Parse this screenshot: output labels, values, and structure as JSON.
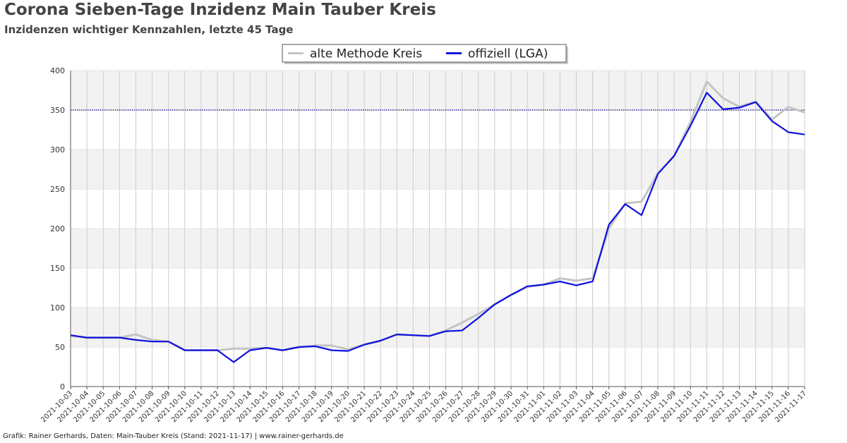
{
  "header": {
    "title": "Corona Sieben-Tage Inzidenz Main Tauber Kreis",
    "subtitle": "Inzidenzen wichtiger Kennzahlen, letzte 45 Tage"
  },
  "footer": {
    "credit": "Grafik: Rainer Gerhards, Daten: Main-Tauber Kreis (Stand: 2021-11-17) | www.rainer-gerhards.de"
  },
  "colors": {
    "official": "#1010e0",
    "old_method": "#c4c4c4",
    "threshold": "#00008b",
    "band": "#f2f2f2",
    "grid": "#cccccc"
  },
  "chart_data": {
    "type": "line",
    "title": "Corona Sieben-Tage Inzidenz Main Tauber Kreis",
    "subtitle": "Inzidenzen wichtiger Kennzahlen, letzte 45 Tage",
    "xlabel": "",
    "ylabel": "",
    "ylim": [
      0,
      400
    ],
    "yticks": [
      0,
      50,
      100,
      150,
      200,
      250,
      300,
      350,
      400
    ],
    "grid": true,
    "legend_position": "top-center",
    "reference_line": {
      "y": 350,
      "style": "dotted"
    },
    "x": [
      "2021-10-03",
      "2021-10-04",
      "2021-10-05",
      "2021-10-06",
      "2021-10-07",
      "2021-10-08",
      "2021-10-09",
      "2021-10-10",
      "2021-10-11",
      "2021-10-12",
      "2021-10-13",
      "2021-10-14",
      "2021-10-15",
      "2021-10-16",
      "2021-10-17",
      "2021-10-18",
      "2021-10-19",
      "2021-10-20",
      "2021-10-21",
      "2021-10-22",
      "2021-10-23",
      "2021-10-24",
      "2021-10-25",
      "2021-10-26",
      "2021-10-27",
      "2021-10-28",
      "2021-10-29",
      "2021-10-30",
      "2021-10-31",
      "2021-11-01",
      "2021-11-02",
      "2021-11-03",
      "2021-11-04",
      "2021-11-05",
      "2021-11-06",
      "2021-11-07",
      "2021-11-08",
      "2021-11-09",
      "2021-11-10",
      "2021-11-11",
      "2021-11-12",
      "2021-11-13",
      "2021-11-14",
      "2021-11-15",
      "2021-11-16",
      "2021-11-17"
    ],
    "series": [
      {
        "name": "alte Methode Kreis",
        "color": "#c4c4c4",
        "values": [
          64,
          62,
          62,
          62,
          66,
          59,
          57,
          46,
          46,
          46,
          48,
          48,
          49,
          46,
          50,
          52,
          52,
          47,
          53,
          58,
          66,
          65,
          64,
          71,
          81,
          92,
          104,
          116,
          126,
          129,
          137,
          134,
          137,
          200,
          232,
          234,
          270,
          292,
          335,
          386,
          365,
          354,
          361,
          338,
          354,
          347
        ]
      },
      {
        "name": "offiziell (LGA)",
        "color": "#1010e0",
        "values": [
          65,
          62,
          62,
          62,
          59,
          57,
          57,
          46,
          46,
          46,
          31,
          46,
          49,
          46,
          50,
          51,
          46,
          45,
          53,
          58,
          66,
          65,
          64,
          70,
          71,
          87,
          104,
          116,
          127,
          129,
          133,
          128,
          133,
          205,
          231,
          217,
          269,
          292,
          330,
          372,
          351,
          353,
          360,
          336,
          322,
          319
        ]
      }
    ]
  }
}
